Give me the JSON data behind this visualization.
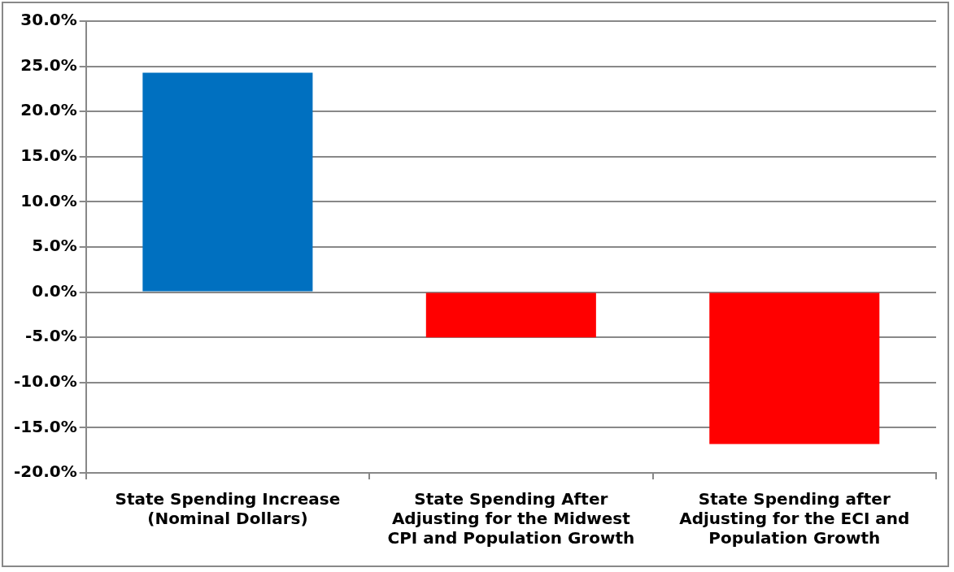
{
  "chart_data": {
    "type": "bar",
    "categories": [
      "State Spending Increase (Nominal Dollars)",
      "State Spending After Adjusting for the Midwest CPI and Population Growth",
      "State Spending after Adjusting for the ECI and Population Growth"
    ],
    "values": [
      24.3,
      -5.0,
      -16.8
    ],
    "colors": [
      "#0070c0",
      "#ff0000",
      "#ff0000"
    ],
    "ylim": [
      -20,
      30
    ],
    "yticks": [
      {
        "value": -20,
        "label": "-20.0%"
      },
      {
        "value": -15,
        "label": "-15.0%"
      },
      {
        "value": -10,
        "label": "-10.0%"
      },
      {
        "value": -5,
        "label": "-5.0%"
      },
      {
        "value": 0,
        "label": "0.0%"
      },
      {
        "value": 5,
        "label": "5.0%"
      },
      {
        "value": 10,
        "label": "10.0%"
      },
      {
        "value": 15,
        "label": "15.0%"
      },
      {
        "value": 20,
        "label": "20.0%"
      },
      {
        "value": 25,
        "label": "25.0%"
      },
      {
        "value": 30,
        "label": "30.0%"
      }
    ],
    "grid": "y",
    "legend": false
  }
}
